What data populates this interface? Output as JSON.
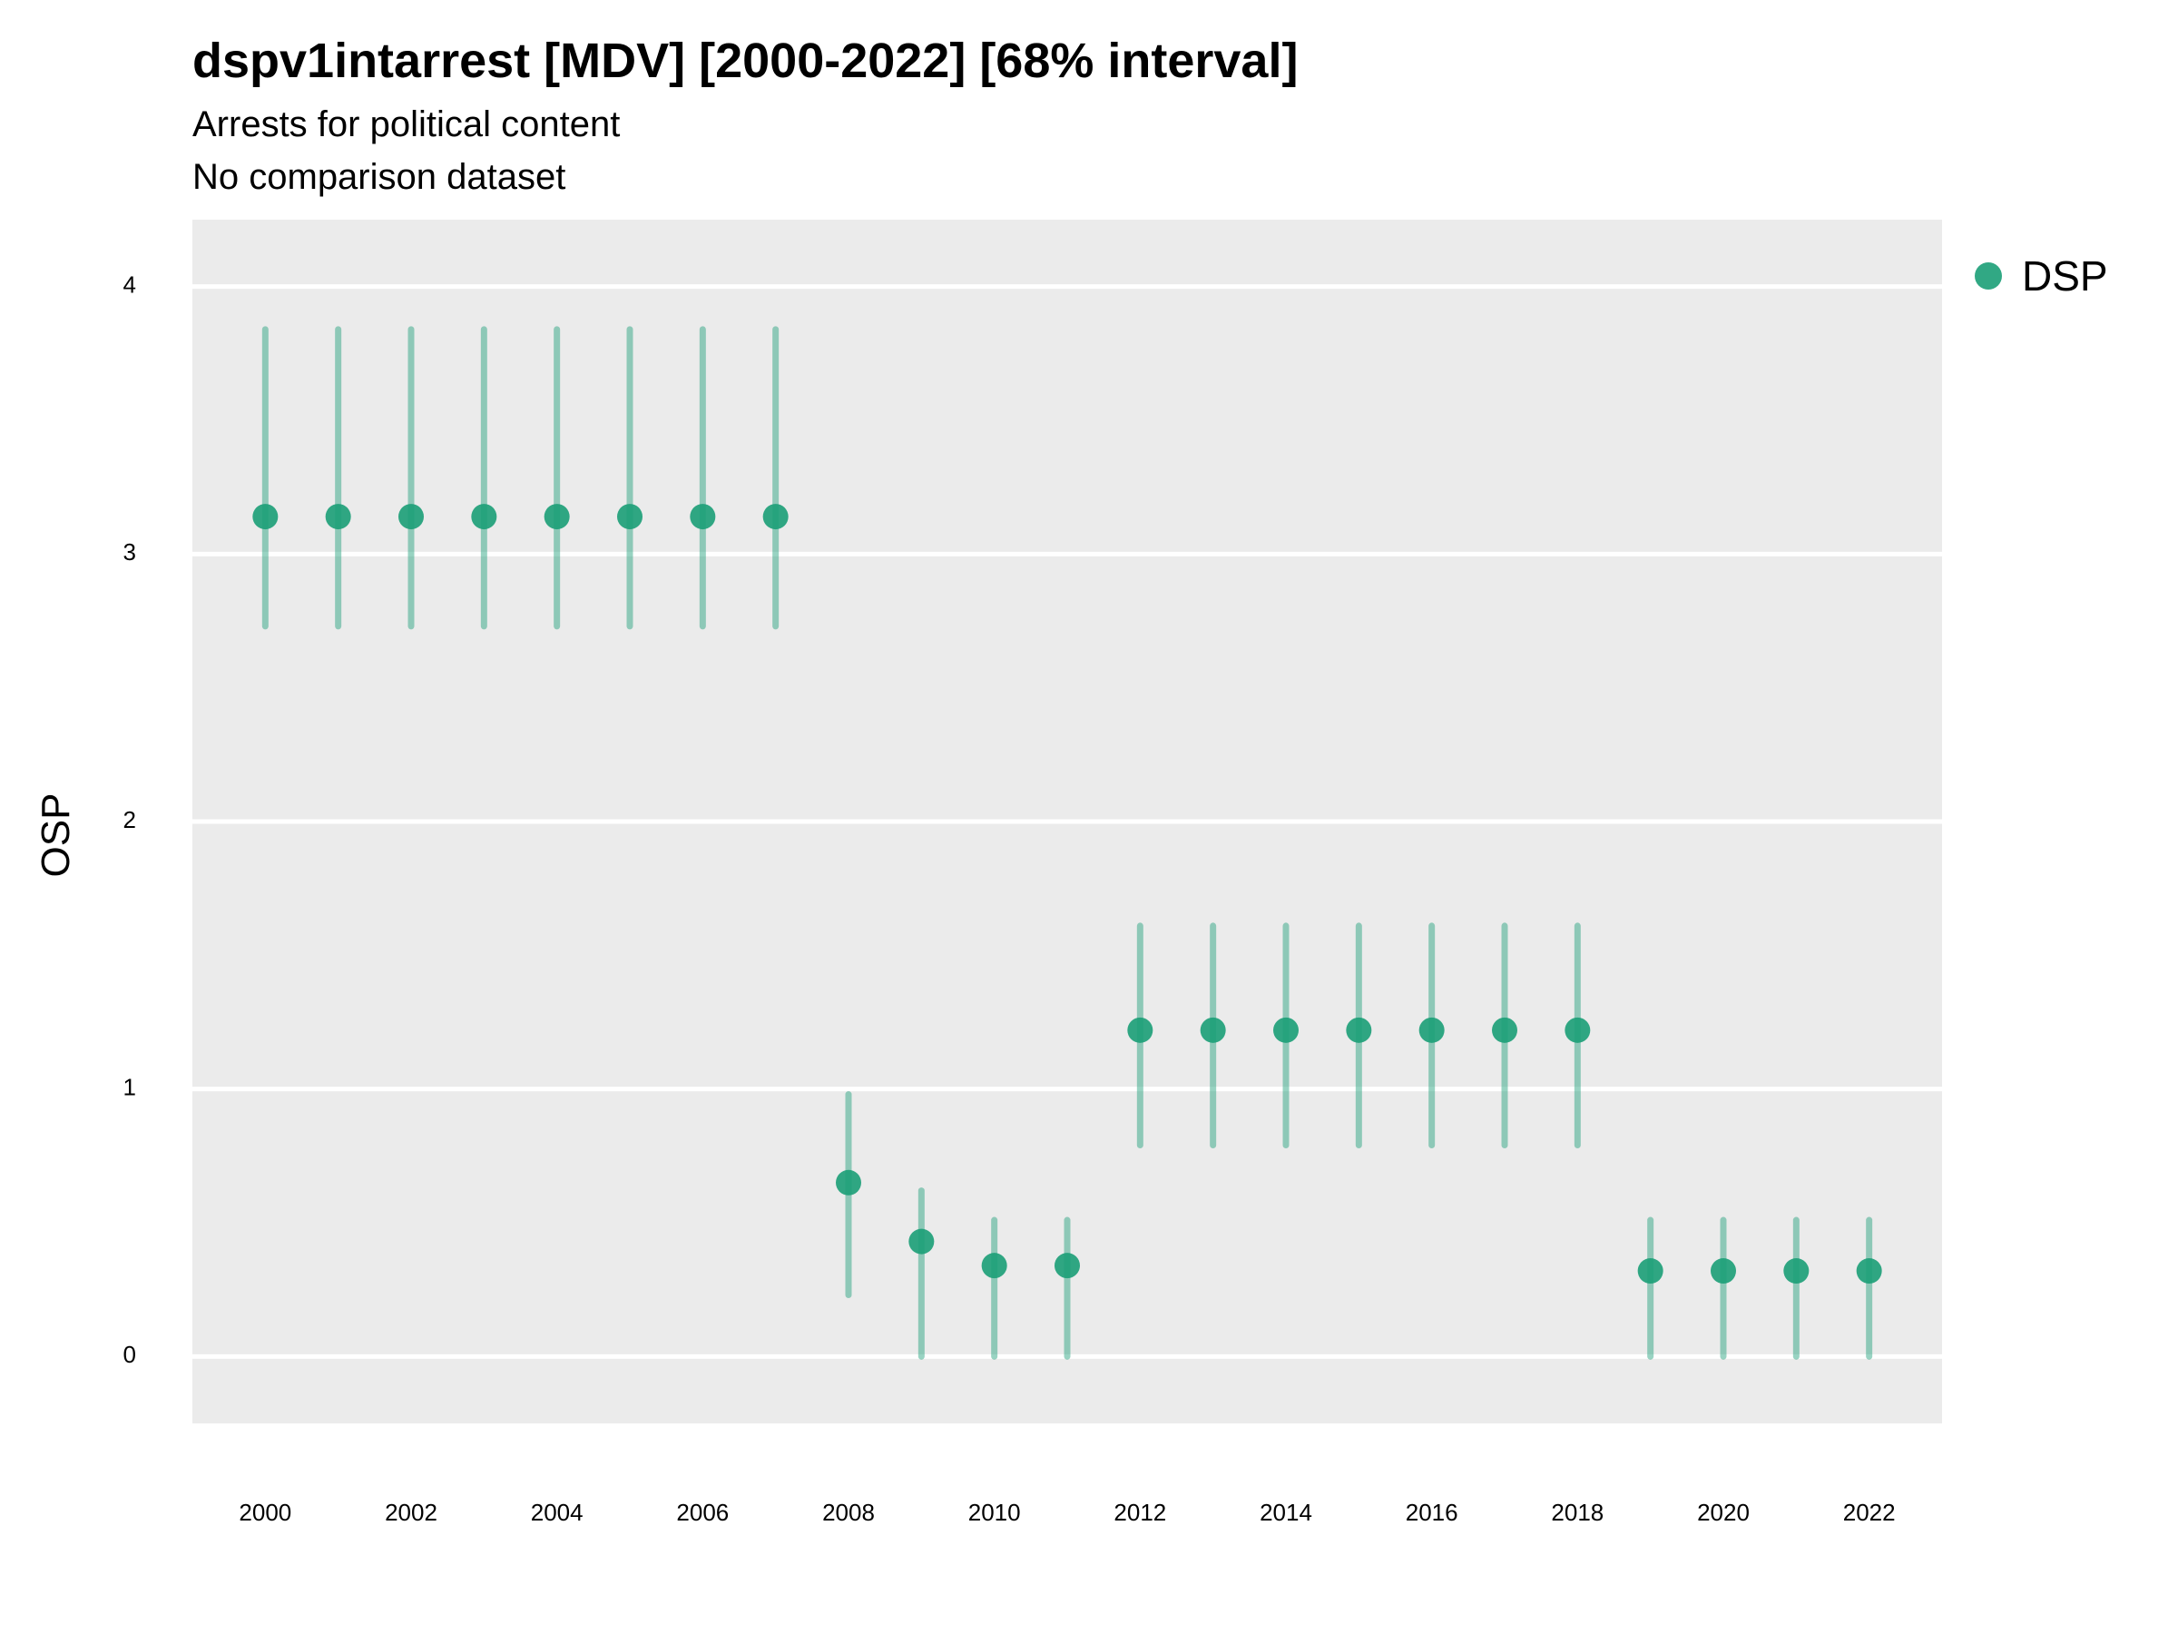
{
  "chart_data": {
    "type": "scatter",
    "title": "dspv1intarrest [MDV] [2000-2022] [68% interval]",
    "subtitle": "Arrests for political content",
    "subtitle2": "No comparison dataset",
    "xlabel": "",
    "ylabel": "OSP",
    "ylim": [
      -0.25,
      4.25
    ],
    "xlim": [
      1999,
      2023
    ],
    "yticks": [
      0,
      1,
      2,
      3,
      4
    ],
    "xticks": [
      2000,
      2002,
      2004,
      2006,
      2008,
      2010,
      2012,
      2014,
      2016,
      2018,
      2020,
      2022
    ],
    "grid": true,
    "legend_position": "right",
    "series": [
      {
        "name": "DSP",
        "color": "#1b9e77",
        "x": [
          2000,
          2001,
          2002,
          2003,
          2004,
          2005,
          2006,
          2007,
          2008,
          2009,
          2010,
          2011,
          2012,
          2013,
          2014,
          2015,
          2016,
          2017,
          2018,
          2019,
          2020,
          2021,
          2022
        ],
        "y": [
          3.14,
          3.14,
          3.14,
          3.14,
          3.14,
          3.14,
          3.14,
          3.14,
          0.65,
          0.43,
          0.34,
          0.34,
          1.22,
          1.22,
          1.22,
          1.22,
          1.22,
          1.22,
          1.22,
          0.32,
          0.32,
          0.32,
          0.32
        ],
        "lower": [
          2.73,
          2.73,
          2.73,
          2.73,
          2.73,
          2.73,
          2.73,
          2.73,
          0.23,
          0.0,
          0.0,
          0.0,
          0.79,
          0.79,
          0.79,
          0.79,
          0.79,
          0.79,
          0.79,
          0.0,
          0.0,
          0.0,
          0.0
        ],
        "upper": [
          3.84,
          3.84,
          3.84,
          3.84,
          3.84,
          3.84,
          3.84,
          3.84,
          0.98,
          0.62,
          0.51,
          0.51,
          1.61,
          1.61,
          1.61,
          1.61,
          1.61,
          1.61,
          1.61,
          0.51,
          0.51,
          0.51,
          0.51
        ]
      }
    ]
  }
}
